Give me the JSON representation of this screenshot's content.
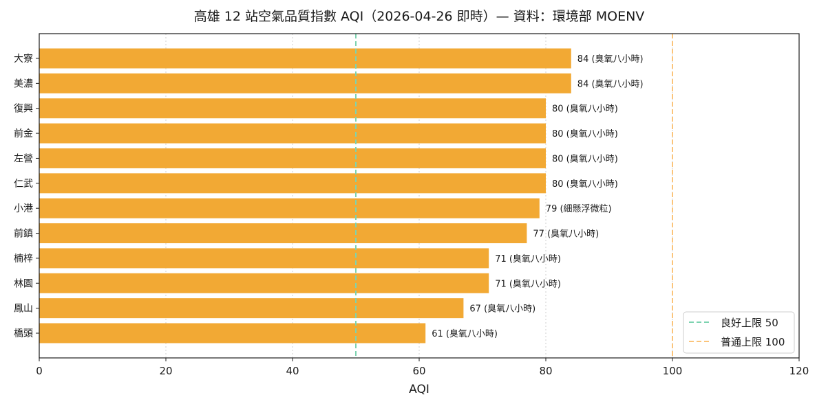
{
  "chart_data": {
    "type": "bar",
    "orientation": "horizontal",
    "title": "高雄 12 站空氣品質指數 AQI（2026-04-26 即時）— 資料：環境部 MOENV",
    "xlabel": "AQI",
    "ylabel": "",
    "xlim": [
      0,
      120
    ],
    "xticks": [
      0,
      20,
      40,
      60,
      80,
      100,
      120
    ],
    "grid": "vertical-dotted",
    "bar_color": "#f2a934",
    "categories": [
      "大寮",
      "美濃",
      "復興",
      "前金",
      "左營",
      "仁武",
      "小港",
      "前鎮",
      "楠梓",
      "林園",
      "鳳山",
      "橋頭"
    ],
    "values": [
      84,
      84,
      80,
      80,
      80,
      80,
      79,
      77,
      71,
      71,
      67,
      61
    ],
    "pollutants": [
      "臭氧八小時",
      "臭氧八小時",
      "臭氧八小時",
      "臭氧八小時",
      "臭氧八小時",
      "臭氧八小時",
      "細懸浮微粒",
      "臭氧八小時",
      "臭氧八小時",
      "臭氧八小時",
      "臭氧八小時",
      "臭氧八小時"
    ],
    "data_labels": [
      "84 (臭氧八小時)",
      "84 (臭氧八小時)",
      "80 (臭氧八小時)",
      "80 (臭氧八小時)",
      "80 (臭氧八小時)",
      "80 (臭氧八小時)",
      "79 (細懸浮微粒)",
      "77 (臭氧八小時)",
      "71 (臭氧八小時)",
      "71 (臭氧八小時)",
      "67 (臭氧八小時)",
      "61 (臭氧八小時)"
    ],
    "reference_lines": [
      {
        "label": "良好上限 50",
        "value": 50,
        "color": "#7dd3b0"
      },
      {
        "label": "普通上限 100",
        "value": 100,
        "color": "#fbc47a"
      }
    ],
    "legend_position": "bottom-right"
  }
}
